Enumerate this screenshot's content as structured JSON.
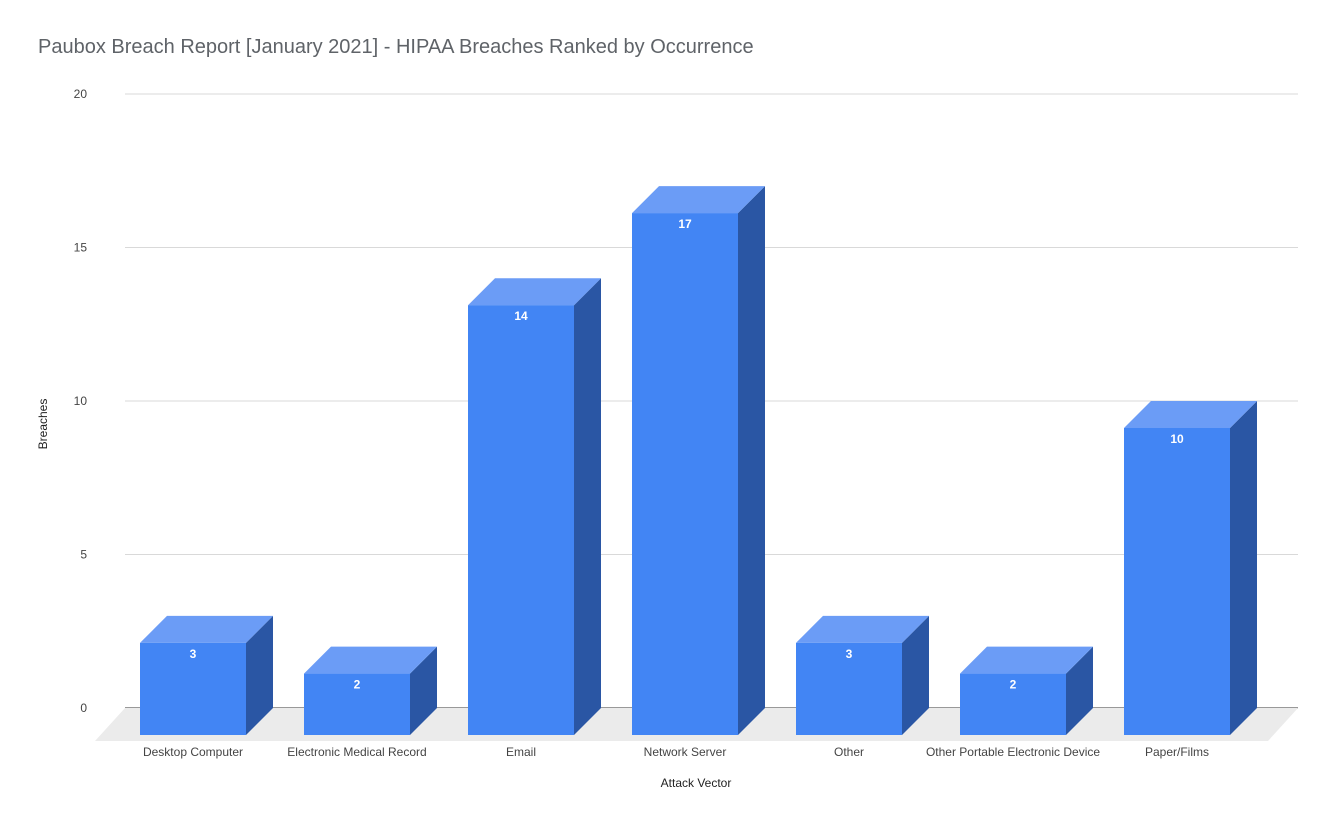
{
  "chart_data": {
    "type": "bar",
    "title": "Paubox Breach Report [January 2021] - HIPAA Breaches Ranked by Occurrence",
    "xlabel": "Attack Vector",
    "ylabel": "Breaches",
    "categories": [
      "Desktop Computer",
      "Electronic Medical Record",
      "Email",
      "Network Server",
      "Other",
      "Other Portable Electronic Device",
      "Paper/Films"
    ],
    "values": [
      3,
      2,
      14,
      17,
      3,
      2,
      10
    ],
    "ylim": [
      0,
      20
    ],
    "yticks": [
      0,
      5,
      10,
      15,
      20
    ],
    "grid": true,
    "legend": "none",
    "style": "3d",
    "colors": {
      "front": "#4285f4",
      "top": "#6b9cf6",
      "side": "#2a56a4",
      "floor": "#ebebeb",
      "grid": "#d9d9d9",
      "baseline": "#333333",
      "label_inside": "#ffffff",
      "text": "#444444"
    }
  }
}
